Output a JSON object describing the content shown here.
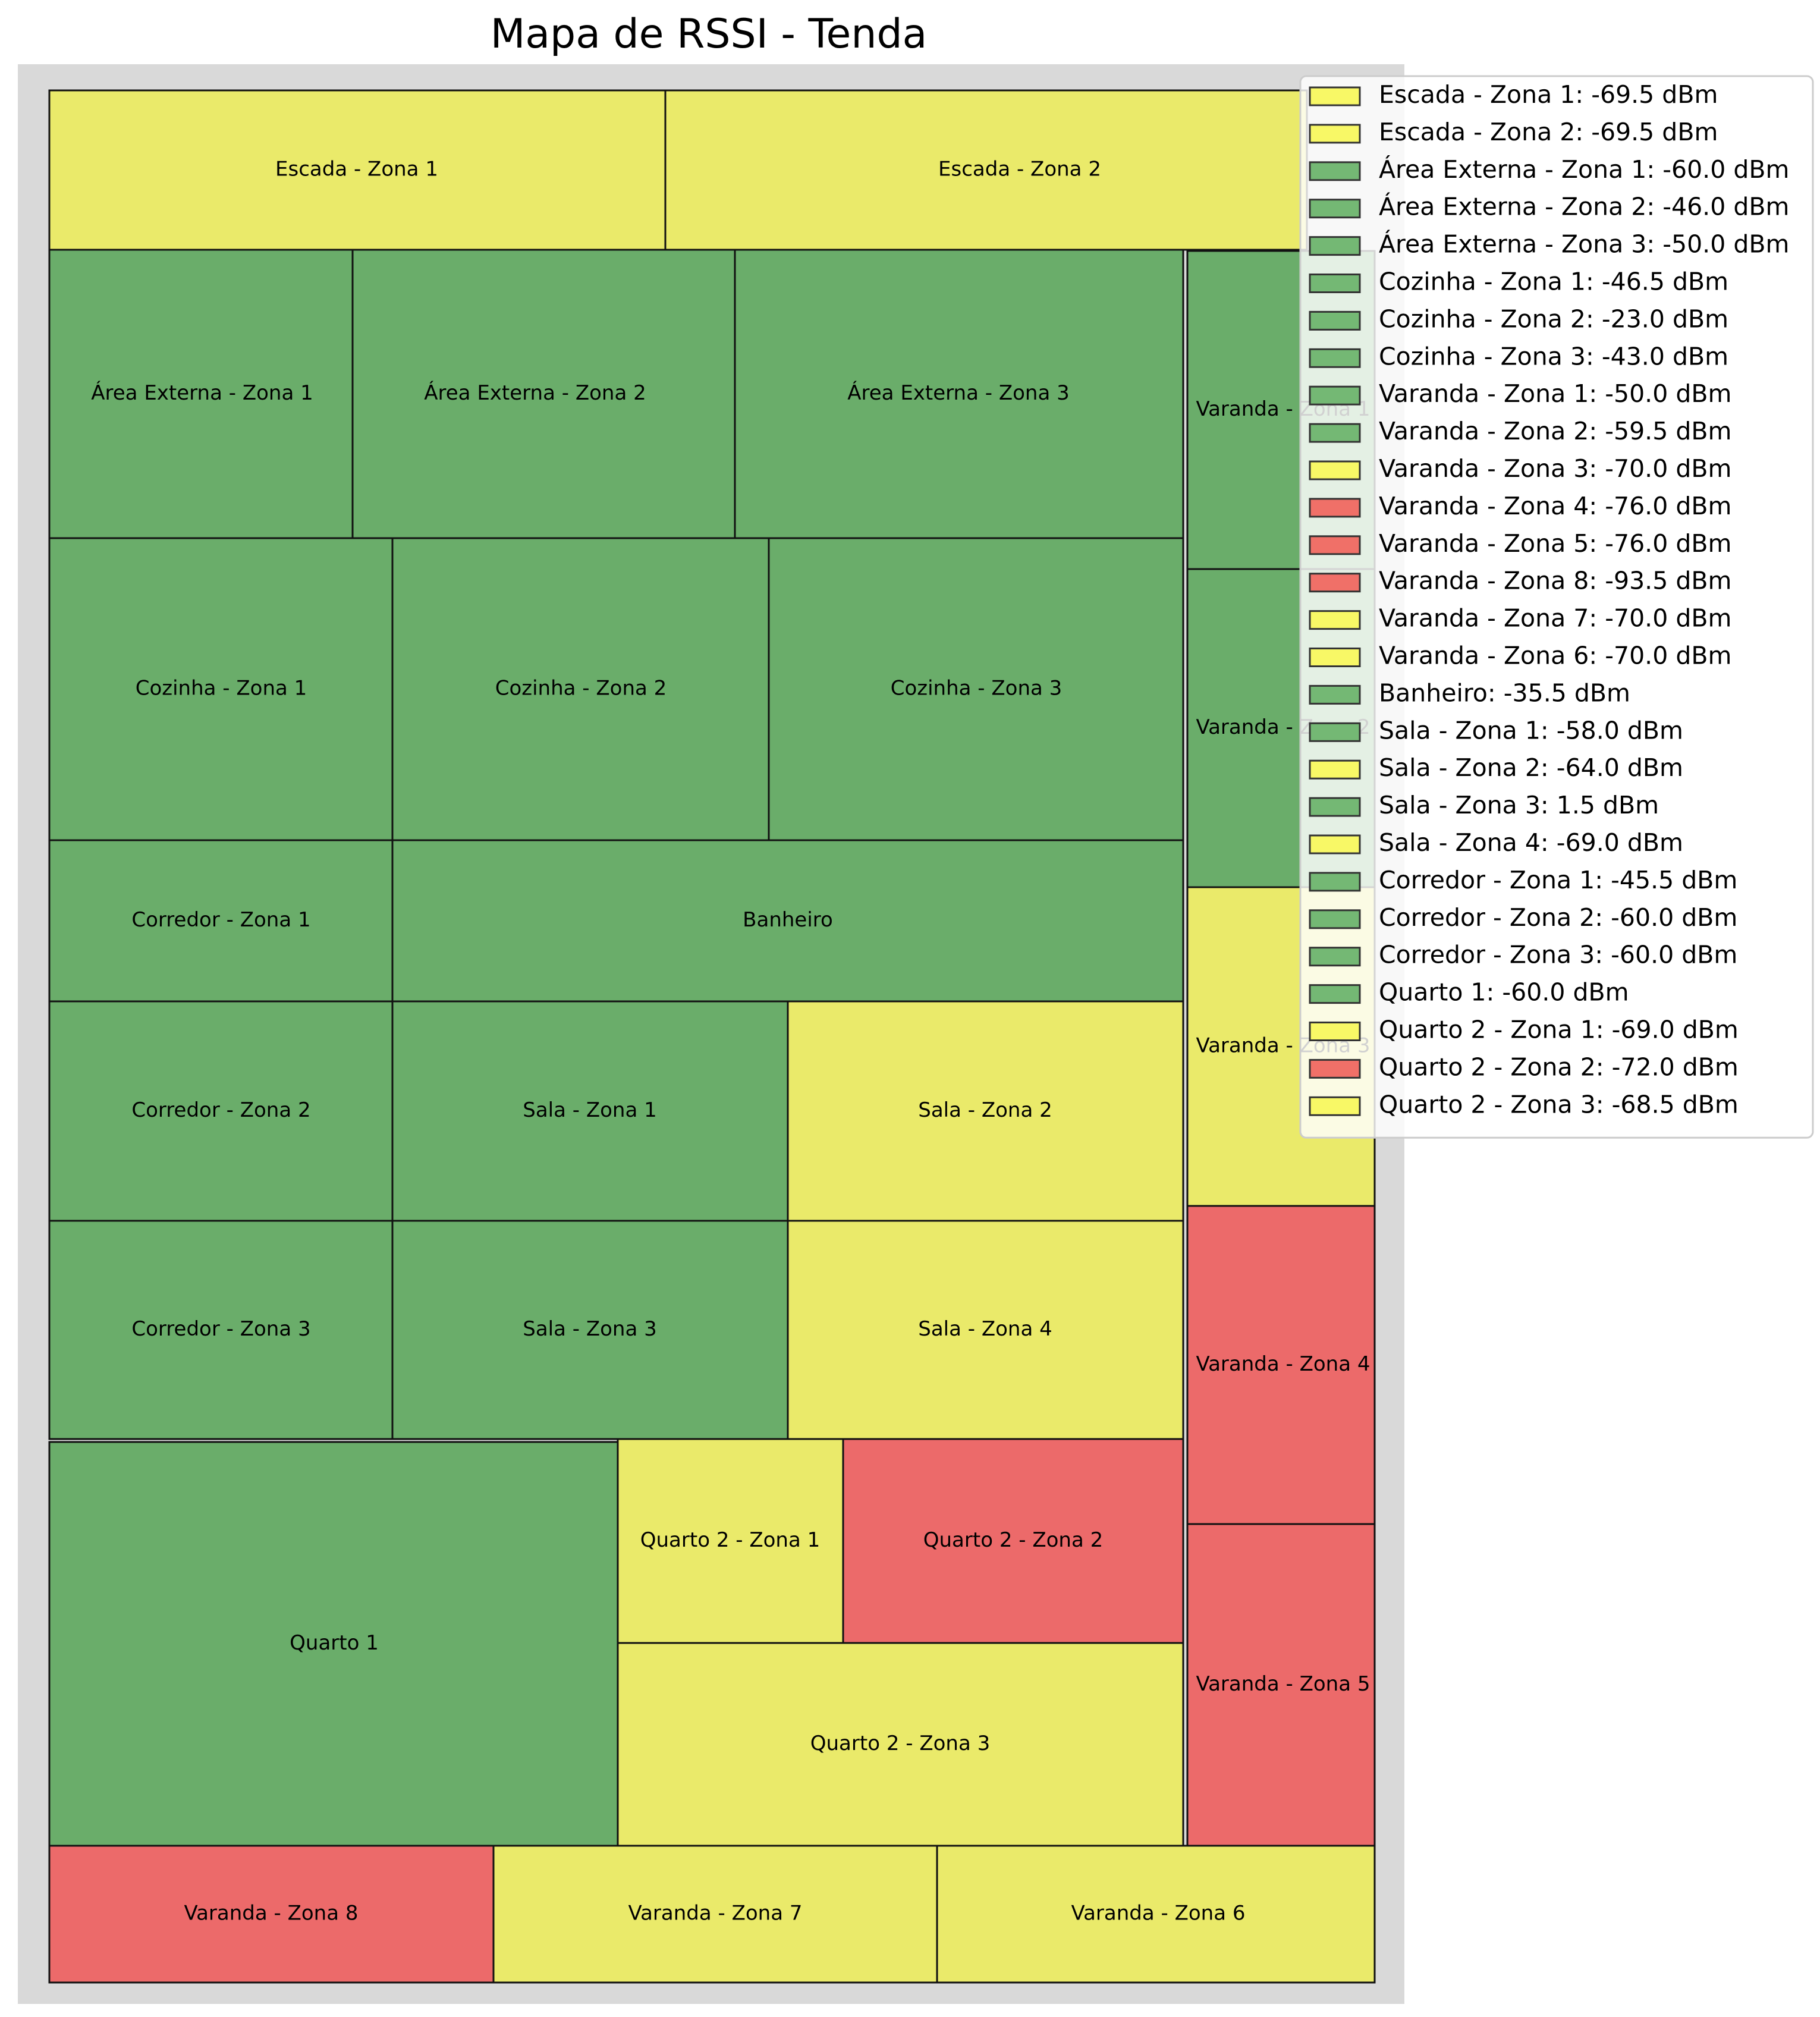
{
  "title": "Mapa de RSSI - Tenda",
  "colors": {
    "green": "#6aad6a",
    "yellow": "#eaea6a",
    "red": "#ec6a6a",
    "frame": "#d9d9d9"
  },
  "legend_colors": {
    "green": "#74b874",
    "yellow": "#f8f866",
    "red": "#f07068"
  },
  "zones": [
    {
      "name": "Escada - Zona 1",
      "label": "Escada - Zona 1",
      "rssi": -69.5,
      "color": "yellow"
    },
    {
      "name": "Escada - Zona 2",
      "label": "Escada - Zona 2",
      "rssi": -69.5,
      "color": "yellow"
    },
    {
      "name": "Área Externa - Zona 1",
      "label": "Área Externa - Zona 1",
      "rssi": -60.0,
      "color": "green"
    },
    {
      "name": "Área Externa - Zona 2",
      "label": "Área Externa - Zona 2",
      "rssi": -46.0,
      "color": "green"
    },
    {
      "name": "Área Externa - Zona 3",
      "label": "Área Externa - Zona 3",
      "rssi": -50.0,
      "color": "green"
    },
    {
      "name": "Cozinha - Zona 1",
      "label": "Cozinha - Zona 1",
      "rssi": -46.5,
      "color": "green"
    },
    {
      "name": "Cozinha - Zona 2",
      "label": "Cozinha - Zona 2",
      "rssi": -23.0,
      "color": "green"
    },
    {
      "name": "Cozinha - Zona 3",
      "label": "Cozinha - Zona 3",
      "rssi": -43.0,
      "color": "green"
    },
    {
      "name": "Varanda - Zona 1",
      "label": "Varanda - Zona 1",
      "rssi": -50.0,
      "color": "green"
    },
    {
      "name": "Varanda - Zona 2",
      "label": "Varanda - Zona 2",
      "rssi": -59.5,
      "color": "green"
    },
    {
      "name": "Varanda - Zona 3",
      "label": "Varanda - Zona 3",
      "rssi": -70.0,
      "color": "yellow"
    },
    {
      "name": "Varanda - Zona 4",
      "label": "Varanda - Zona 4",
      "rssi": -76.0,
      "color": "red"
    },
    {
      "name": "Varanda - Zona 5",
      "label": "Varanda - Zona 5",
      "rssi": -76.0,
      "color": "red"
    },
    {
      "name": "Varanda - Zona 8",
      "label": "Varanda - Zona 8",
      "rssi": -93.5,
      "color": "red"
    },
    {
      "name": "Varanda - Zona 7",
      "label": "Varanda - Zona 7",
      "rssi": -70.0,
      "color": "yellow"
    },
    {
      "name": "Varanda - Zona 6",
      "label": "Varanda - Zona 6",
      "rssi": -70.0,
      "color": "yellow"
    },
    {
      "name": "Banheiro",
      "label": "Banheiro",
      "rssi": -35.5,
      "color": "green"
    },
    {
      "name": "Sala - Zona 1",
      "label": "Sala - Zona 1",
      "rssi": -58.0,
      "color": "green"
    },
    {
      "name": "Sala - Zona 2",
      "label": "Sala - Zona 2",
      "rssi": -64.0,
      "color": "yellow"
    },
    {
      "name": "Sala - Zona 3",
      "label": "Sala - Zona 3",
      "rssi": 1.5,
      "color": "green"
    },
    {
      "name": "Sala - Zona 4",
      "label": "Sala - Zona 4",
      "rssi": -69.0,
      "color": "yellow"
    },
    {
      "name": "Corredor - Zona 1",
      "label": "Corredor - Zona 1",
      "rssi": -45.5,
      "color": "green"
    },
    {
      "name": "Corredor - Zona 2",
      "label": "Corredor - Zona 2",
      "rssi": -60.0,
      "color": "green"
    },
    {
      "name": "Corredor - Zona 3",
      "label": "Corredor - Zona 3",
      "rssi": -60.0,
      "color": "green"
    },
    {
      "name": "Quarto 1",
      "label": "Quarto 1",
      "rssi": -60.0,
      "color": "green"
    },
    {
      "name": "Quarto 2 - Zona 1",
      "label": "Quarto 2 - Zona 1",
      "rssi": -69.0,
      "color": "yellow"
    },
    {
      "name": "Quarto 2 - Zona 2",
      "label": "Quarto 2 - Zona 2",
      "rssi": -72.0,
      "color": "red"
    },
    {
      "name": "Quarto 2 - Zona 3",
      "label": "Quarto 2 - Zona 3",
      "rssi": -68.5,
      "color": "yellow"
    }
  ],
  "legend": [
    "Escada - Zona 1: -69.5 dBm",
    "Escada - Zona 2: -69.5 dBm",
    "Área Externa - Zona 1: -60.0 dBm",
    "Área Externa - Zona 2: -46.0 dBm",
    "Área Externa - Zona 3: -50.0 dBm",
    "Cozinha - Zona 1: -46.5 dBm",
    "Cozinha - Zona 2: -23.0 dBm",
    "Cozinha - Zona 3: -43.0 dBm",
    "Varanda - Zona 1: -50.0 dBm",
    "Varanda - Zona 2: -59.5 dBm",
    "Varanda - Zona 3: -70.0 dBm",
    "Varanda - Zona 4: -76.0 dBm",
    "Varanda - Zona 5: -76.0 dBm",
    "Varanda - Zona 8: -93.5 dBm",
    "Varanda - Zona 7: -70.0 dBm",
    "Varanda - Zona 6: -70.0 dBm",
    "Banheiro: -35.5 dBm",
    "Sala - Zona 1: -58.0 dBm",
    "Sala - Zona 2: -64.0 dBm",
    "Sala - Zona 3: 1.5 dBm",
    "Sala - Zona 4: -69.0 dBm",
    "Corredor - Zona 1: -45.5 dBm",
    "Corredor - Zona 2: -60.0 dBm",
    "Corredor - Zona 3: -60.0 dBm",
    "Quarto 1: -60.0 dBm",
    "Quarto 2 - Zona 1: -69.0 dBm",
    "Quarto 2 - Zona 2: -72.0 dBm",
    "Quarto 2 - Zona 3: -68.5 dBm"
  ]
}
